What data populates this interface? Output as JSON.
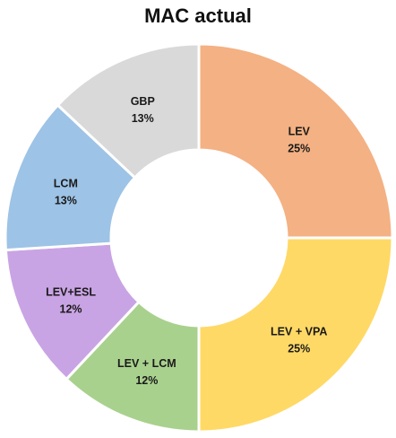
{
  "chart_data": {
    "type": "pie",
    "title": "MAC actual",
    "categories": [
      "LEV",
      "LEV + VPA",
      "LEV + LCM",
      "LEV+ESL",
      "LCM",
      "GBP"
    ],
    "values": [
      25,
      25,
      12,
      12,
      13,
      13
    ],
    "value_labels": [
      "25%",
      "25%",
      "12%",
      "12%",
      "13%",
      "13%"
    ],
    "colors": [
      "#F4B183",
      "#FFD966",
      "#A9D18E",
      "#C9A4E4",
      "#9DC3E6",
      "#D9D9D9"
    ],
    "style": "donut",
    "start": "top, clockwise",
    "legend": "none (labels on slices)"
  }
}
